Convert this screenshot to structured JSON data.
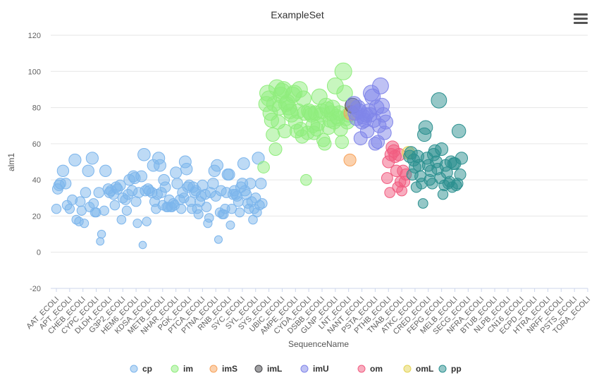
{
  "chart_data": {
    "type": "scatter",
    "title": "ExampleSet",
    "xlabel": "SequenceName",
    "ylabel": "alm1",
    "ylim": [
      -20,
      120
    ],
    "yticks": [
      -20,
      0,
      20,
      40,
      60,
      80,
      100,
      120
    ],
    "grid": true,
    "legend_position": "bottom",
    "categories": [
      "AAT_ECOLI",
      "APT_ECOLI",
      "CHEB_ECOLI",
      "CYPC_ECOLI",
      "DLDH_ECOLI",
      "G3P2_ECOLI",
      "HEM6_ECOLI",
      "KDSA_ECOLI",
      "METB_ECOLI",
      "NHAR_ECOLI",
      "PGK_ECOLI",
      "PTCA_ECOLI",
      "PTNA_ECOLI",
      "RNB_ECOLI",
      "SYC_ECOLI",
      "SYL_ECOLI",
      "SYS_ECOLI",
      "UBIC_ECOLI",
      "AMPE_ECOLI",
      "CYDA_ECOLI",
      "DSBB_ECOLI",
      "GLNP_ECOLI",
      "LNT_ECOLI",
      "NANT_ECOLI",
      "PSTA_ECOLI",
      "PTHB_ECOLI",
      "TNAB_ECOLI",
      "ATKC_ECOLI",
      "CRED_ECOLI",
      "FEPG_ECOLI",
      "MELB_ECOLI",
      "SECG_ECOLI",
      "NFRA_ECOLI",
      "BTUB_ECOLI",
      "NLPB_ECOLI",
      "CN16_ECOLI",
      "ECPD_ECOLI",
      "HTRA_ECOLI",
      "NRFF_ECOLI",
      "PSTS_ECOLI",
      "TORA_ECOLI"
    ],
    "series": [
      {
        "name": "cp",
        "color": "#7cb5ec",
        "points": [
          [
            0.0,
            24
          ],
          [
            0.1,
            35
          ],
          [
            0.2,
            37
          ],
          [
            0.3,
            38
          ],
          [
            0.5,
            45
          ],
          [
            0.7,
            38
          ],
          [
            0.8,
            26
          ],
          [
            1.0,
            24
          ],
          [
            1.2,
            29
          ],
          [
            1.4,
            51
          ],
          [
            1.5,
            18
          ],
          [
            1.7,
            17
          ],
          [
            1.8,
            28
          ],
          [
            1.9,
            23
          ],
          [
            2.1,
            16
          ],
          [
            2.2,
            33
          ],
          [
            2.4,
            45
          ],
          [
            2.5,
            25
          ],
          [
            2.7,
            52
          ],
          [
            2.8,
            27
          ],
          [
            2.9,
            22
          ],
          [
            3.0,
            22
          ],
          [
            3.2,
            33
          ],
          [
            3.3,
            6
          ],
          [
            3.4,
            10
          ],
          [
            3.6,
            23
          ],
          [
            3.7,
            45
          ],
          [
            3.9,
            35
          ],
          [
            4.0,
            33
          ],
          [
            4.1,
            34
          ],
          [
            4.3,
            32
          ],
          [
            4.4,
            26
          ],
          [
            4.5,
            36
          ],
          [
            4.6,
            35
          ],
          [
            4.8,
            37
          ],
          [
            4.9,
            18
          ],
          [
            5.0,
            30
          ],
          [
            5.2,
            29
          ],
          [
            5.3,
            23
          ],
          [
            5.4,
            32
          ],
          [
            5.5,
            40
          ],
          [
            5.7,
            34
          ],
          [
            5.8,
            42
          ],
          [
            5.9,
            41
          ],
          [
            6.0,
            28
          ],
          [
            6.1,
            16
          ],
          [
            6.2,
            33
          ],
          [
            6.4,
            42
          ],
          [
            6.5,
            4
          ],
          [
            6.6,
            54
          ],
          [
            6.7,
            34
          ],
          [
            6.8,
            17
          ],
          [
            6.9,
            35
          ],
          [
            7.0,
            34
          ],
          [
            7.2,
            33
          ],
          [
            7.3,
            48
          ],
          [
            7.4,
            28
          ],
          [
            7.5,
            24
          ],
          [
            7.6,
            32
          ],
          [
            7.7,
            52
          ],
          [
            7.8,
            48
          ],
          [
            7.9,
            33
          ],
          [
            8.0,
            26
          ],
          [
            8.1,
            40
          ],
          [
            8.2,
            36
          ],
          [
            8.3,
            25
          ],
          [
            8.4,
            25
          ],
          [
            8.5,
            29
          ],
          [
            8.6,
            25
          ],
          [
            8.7,
            25
          ],
          [
            8.8,
            27
          ],
          [
            8.9,
            26
          ],
          [
            9.0,
            44
          ],
          [
            9.1,
            38
          ],
          [
            9.3,
            29
          ],
          [
            9.4,
            24
          ],
          [
            9.5,
            33
          ],
          [
            9.6,
            30
          ],
          [
            9.7,
            50
          ],
          [
            9.8,
            46
          ],
          [
            9.9,
            36
          ],
          [
            10.0,
            37
          ],
          [
            10.1,
            28
          ],
          [
            10.2,
            24
          ],
          [
            10.3,
            36
          ],
          [
            10.4,
            33
          ],
          [
            10.5,
            34
          ],
          [
            10.6,
            24
          ],
          [
            10.7,
            21
          ],
          [
            10.8,
            28
          ],
          [
            10.9,
            31
          ],
          [
            11.0,
            37
          ],
          [
            11.2,
            32
          ],
          [
            11.3,
            25
          ],
          [
            11.4,
            16
          ],
          [
            11.5,
            19
          ],
          [
            11.6,
            33
          ],
          [
            11.8,
            38
          ],
          [
            11.9,
            45
          ],
          [
            12.0,
            31
          ],
          [
            12.1,
            48
          ],
          [
            12.2,
            7
          ],
          [
            12.3,
            22
          ],
          [
            12.4,
            34
          ],
          [
            12.5,
            21
          ],
          [
            12.6,
            21
          ],
          [
            12.7,
            24
          ],
          [
            12.8,
            33
          ],
          [
            12.9,
            43
          ],
          [
            13.0,
            43
          ],
          [
            13.1,
            15
          ],
          [
            13.2,
            24
          ],
          [
            13.3,
            32
          ],
          [
            13.4,
            34
          ],
          [
            13.5,
            32
          ],
          [
            13.6,
            31
          ],
          [
            13.7,
            28
          ],
          [
            13.8,
            22
          ],
          [
            13.9,
            36
          ],
          [
            14.0,
            38
          ],
          [
            14.1,
            49
          ],
          [
            14.2,
            34
          ],
          [
            14.3,
            32
          ],
          [
            14.4,
            27
          ],
          [
            14.5,
            24
          ],
          [
            14.6,
            38
          ],
          [
            14.7,
            28
          ],
          [
            14.8,
            18
          ],
          [
            14.9,
            24
          ],
          [
            15.0,
            30
          ],
          [
            15.1,
            22
          ],
          [
            15.2,
            52
          ],
          [
            15.3,
            26
          ],
          [
            15.4,
            38
          ],
          [
            15.5,
            27
          ]
        ]
      },
      {
        "name": "im",
        "color": "#90ed7d",
        "points": [
          [
            15.6,
            47
          ],
          [
            15.8,
            82
          ],
          [
            15.9,
            88
          ],
          [
            16.0,
            85
          ],
          [
            16.1,
            77
          ],
          [
            16.2,
            73
          ],
          [
            16.3,
            65
          ],
          [
            16.4,
            82
          ],
          [
            16.5,
            57
          ],
          [
            16.6,
            91
          ],
          [
            16.7,
            72
          ],
          [
            16.8,
            80
          ],
          [
            16.9,
            87
          ],
          [
            17.0,
            89
          ],
          [
            17.1,
            90
          ],
          [
            17.2,
            67
          ],
          [
            17.3,
            82
          ],
          [
            17.4,
            83
          ],
          [
            17.5,
            80
          ],
          [
            17.6,
            78
          ],
          [
            17.7,
            76
          ],
          [
            17.8,
            87
          ],
          [
            17.9,
            88
          ],
          [
            18.0,
            72
          ],
          [
            18.1,
            67
          ],
          [
            18.2,
            78
          ],
          [
            18.3,
            90
          ],
          [
            18.4,
            68
          ],
          [
            18.5,
            64
          ],
          [
            18.6,
            85
          ],
          [
            18.7,
            77
          ],
          [
            18.8,
            40
          ],
          [
            18.9,
            66
          ],
          [
            19.0,
            78
          ],
          [
            19.1,
            77
          ],
          [
            19.2,
            76
          ],
          [
            19.3,
            70
          ],
          [
            19.4,
            66
          ],
          [
            19.5,
            77
          ],
          [
            19.6,
            68
          ],
          [
            19.7,
            71
          ],
          [
            19.8,
            86
          ],
          [
            19.9,
            76
          ],
          [
            20.0,
            78
          ],
          [
            20.1,
            62
          ],
          [
            20.2,
            60
          ],
          [
            20.3,
            81
          ],
          [
            20.4,
            79
          ],
          [
            20.5,
            69
          ],
          [
            20.6,
            73
          ],
          [
            20.7,
            77
          ],
          [
            20.8,
            80
          ],
          [
            20.9,
            72
          ],
          [
            21.0,
            92
          ],
          [
            21.1,
            75
          ],
          [
            21.2,
            74
          ],
          [
            21.3,
            77
          ],
          [
            21.4,
            68
          ],
          [
            21.5,
            61
          ],
          [
            21.6,
            100
          ],
          [
            21.7,
            88
          ],
          [
            21.8,
            74
          ],
          [
            21.9,
            72
          ],
          [
            22.0,
            76
          ]
        ]
      },
      {
        "name": "imS",
        "color": "#f7a35c",
        "points": [
          [
            22.1,
            51
          ],
          [
            22.2,
            77
          ]
        ]
      },
      {
        "name": "imL",
        "color": "#434348",
        "points": [
          [
            22.3,
            81
          ]
        ]
      },
      {
        "name": "imU",
        "color": "#8085e9",
        "points": [
          [
            22.4,
            82
          ],
          [
            22.5,
            77
          ],
          [
            22.6,
            74
          ],
          [
            22.7,
            80
          ],
          [
            22.8,
            78
          ],
          [
            22.9,
            63
          ],
          [
            23.0,
            72
          ],
          [
            23.1,
            75
          ],
          [
            23.2,
            73
          ],
          [
            23.3,
            76
          ],
          [
            23.4,
            67
          ],
          [
            23.5,
            78
          ],
          [
            23.6,
            76
          ],
          [
            23.7,
            88
          ],
          [
            23.8,
            86
          ],
          [
            23.9,
            73
          ],
          [
            24.0,
            60
          ],
          [
            24.1,
            80
          ],
          [
            24.2,
            61
          ],
          [
            24.3,
            70
          ],
          [
            24.4,
            92
          ],
          [
            24.5,
            81
          ],
          [
            24.6,
            76
          ],
          [
            24.7,
            66
          ],
          [
            24.8,
            72
          ]
        ]
      },
      {
        "name": "om",
        "color": "#f15c80",
        "points": [
          [
            24.9,
            41
          ],
          [
            25.0,
            50
          ],
          [
            25.1,
            33
          ],
          [
            25.2,
            54
          ],
          [
            25.3,
            58
          ],
          [
            25.4,
            56
          ],
          [
            25.5,
            53
          ],
          [
            25.6,
            45
          ],
          [
            25.7,
            36
          ],
          [
            25.8,
            54
          ],
          [
            25.9,
            39
          ],
          [
            26.0,
            34
          ],
          [
            26.1,
            45
          ],
          [
            26.2,
            39
          ],
          [
            26.3,
            43
          ]
        ]
      },
      {
        "name": "omL",
        "color": "#e4d354",
        "points": [
          [
            26.5,
            55
          ]
        ]
      },
      {
        "name": "pp",
        "color": "#2b908f",
        "points": [
          [
            26.6,
            53
          ],
          [
            26.7,
            55
          ],
          [
            26.8,
            43
          ],
          [
            26.9,
            51
          ],
          [
            27.0,
            47
          ],
          [
            27.1,
            36
          ],
          [
            27.2,
            53
          ],
          [
            27.3,
            48
          ],
          [
            27.4,
            42
          ],
          [
            27.5,
            38
          ],
          [
            27.6,
            27
          ],
          [
            27.7,
            65
          ],
          [
            27.8,
            69
          ],
          [
            27.9,
            52
          ],
          [
            28.0,
            48
          ],
          [
            28.1,
            40
          ],
          [
            28.2,
            45
          ],
          [
            28.3,
            38
          ],
          [
            28.4,
            54
          ],
          [
            28.5,
            56
          ],
          [
            28.6,
            50
          ],
          [
            28.7,
            46
          ],
          [
            28.8,
            84
          ],
          [
            28.9,
            41
          ],
          [
            29.0,
            57
          ],
          [
            29.1,
            32
          ],
          [
            29.2,
            37
          ],
          [
            29.3,
            48
          ],
          [
            29.4,
            44
          ],
          [
            29.5,
            38
          ],
          [
            29.6,
            39
          ],
          [
            29.7,
            50
          ],
          [
            29.8,
            36
          ],
          [
            29.9,
            49
          ],
          [
            30.0,
            49
          ],
          [
            30.1,
            37
          ],
          [
            30.2,
            38
          ],
          [
            30.3,
            67
          ],
          [
            30.4,
            43
          ],
          [
            30.5,
            52
          ]
        ]
      }
    ]
  },
  "menu": {
    "icon": "hamburger-menu-icon"
  }
}
